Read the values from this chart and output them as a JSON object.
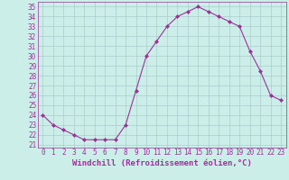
{
  "x": [
    0,
    1,
    2,
    3,
    4,
    5,
    6,
    7,
    8,
    9,
    10,
    11,
    12,
    13,
    14,
    15,
    16,
    17,
    18,
    19,
    20,
    21,
    22,
    23
  ],
  "y": [
    24.0,
    23.0,
    22.5,
    22.0,
    21.5,
    21.5,
    21.5,
    21.5,
    23.0,
    26.5,
    30.0,
    31.5,
    33.0,
    34.0,
    34.5,
    35.0,
    34.5,
    34.0,
    33.5,
    33.0,
    30.5,
    28.5,
    26.0,
    25.5
  ],
  "line_color": "#993399",
  "marker": "D",
  "marker_size": 2.0,
  "bg_color": "#cceee8",
  "grid_color": "#aacccc",
  "xlabel": "Windchill (Refroidissement éolien,°C)",
  "ylabel_ticks": [
    21,
    22,
    23,
    24,
    25,
    26,
    27,
    28,
    29,
    30,
    31,
    32,
    33,
    34,
    35
  ],
  "ylim": [
    20.7,
    35.5
  ],
  "xlim": [
    -0.5,
    23.5
  ],
  "tick_fontsize": 5.5,
  "xlabel_fontsize": 6.5
}
